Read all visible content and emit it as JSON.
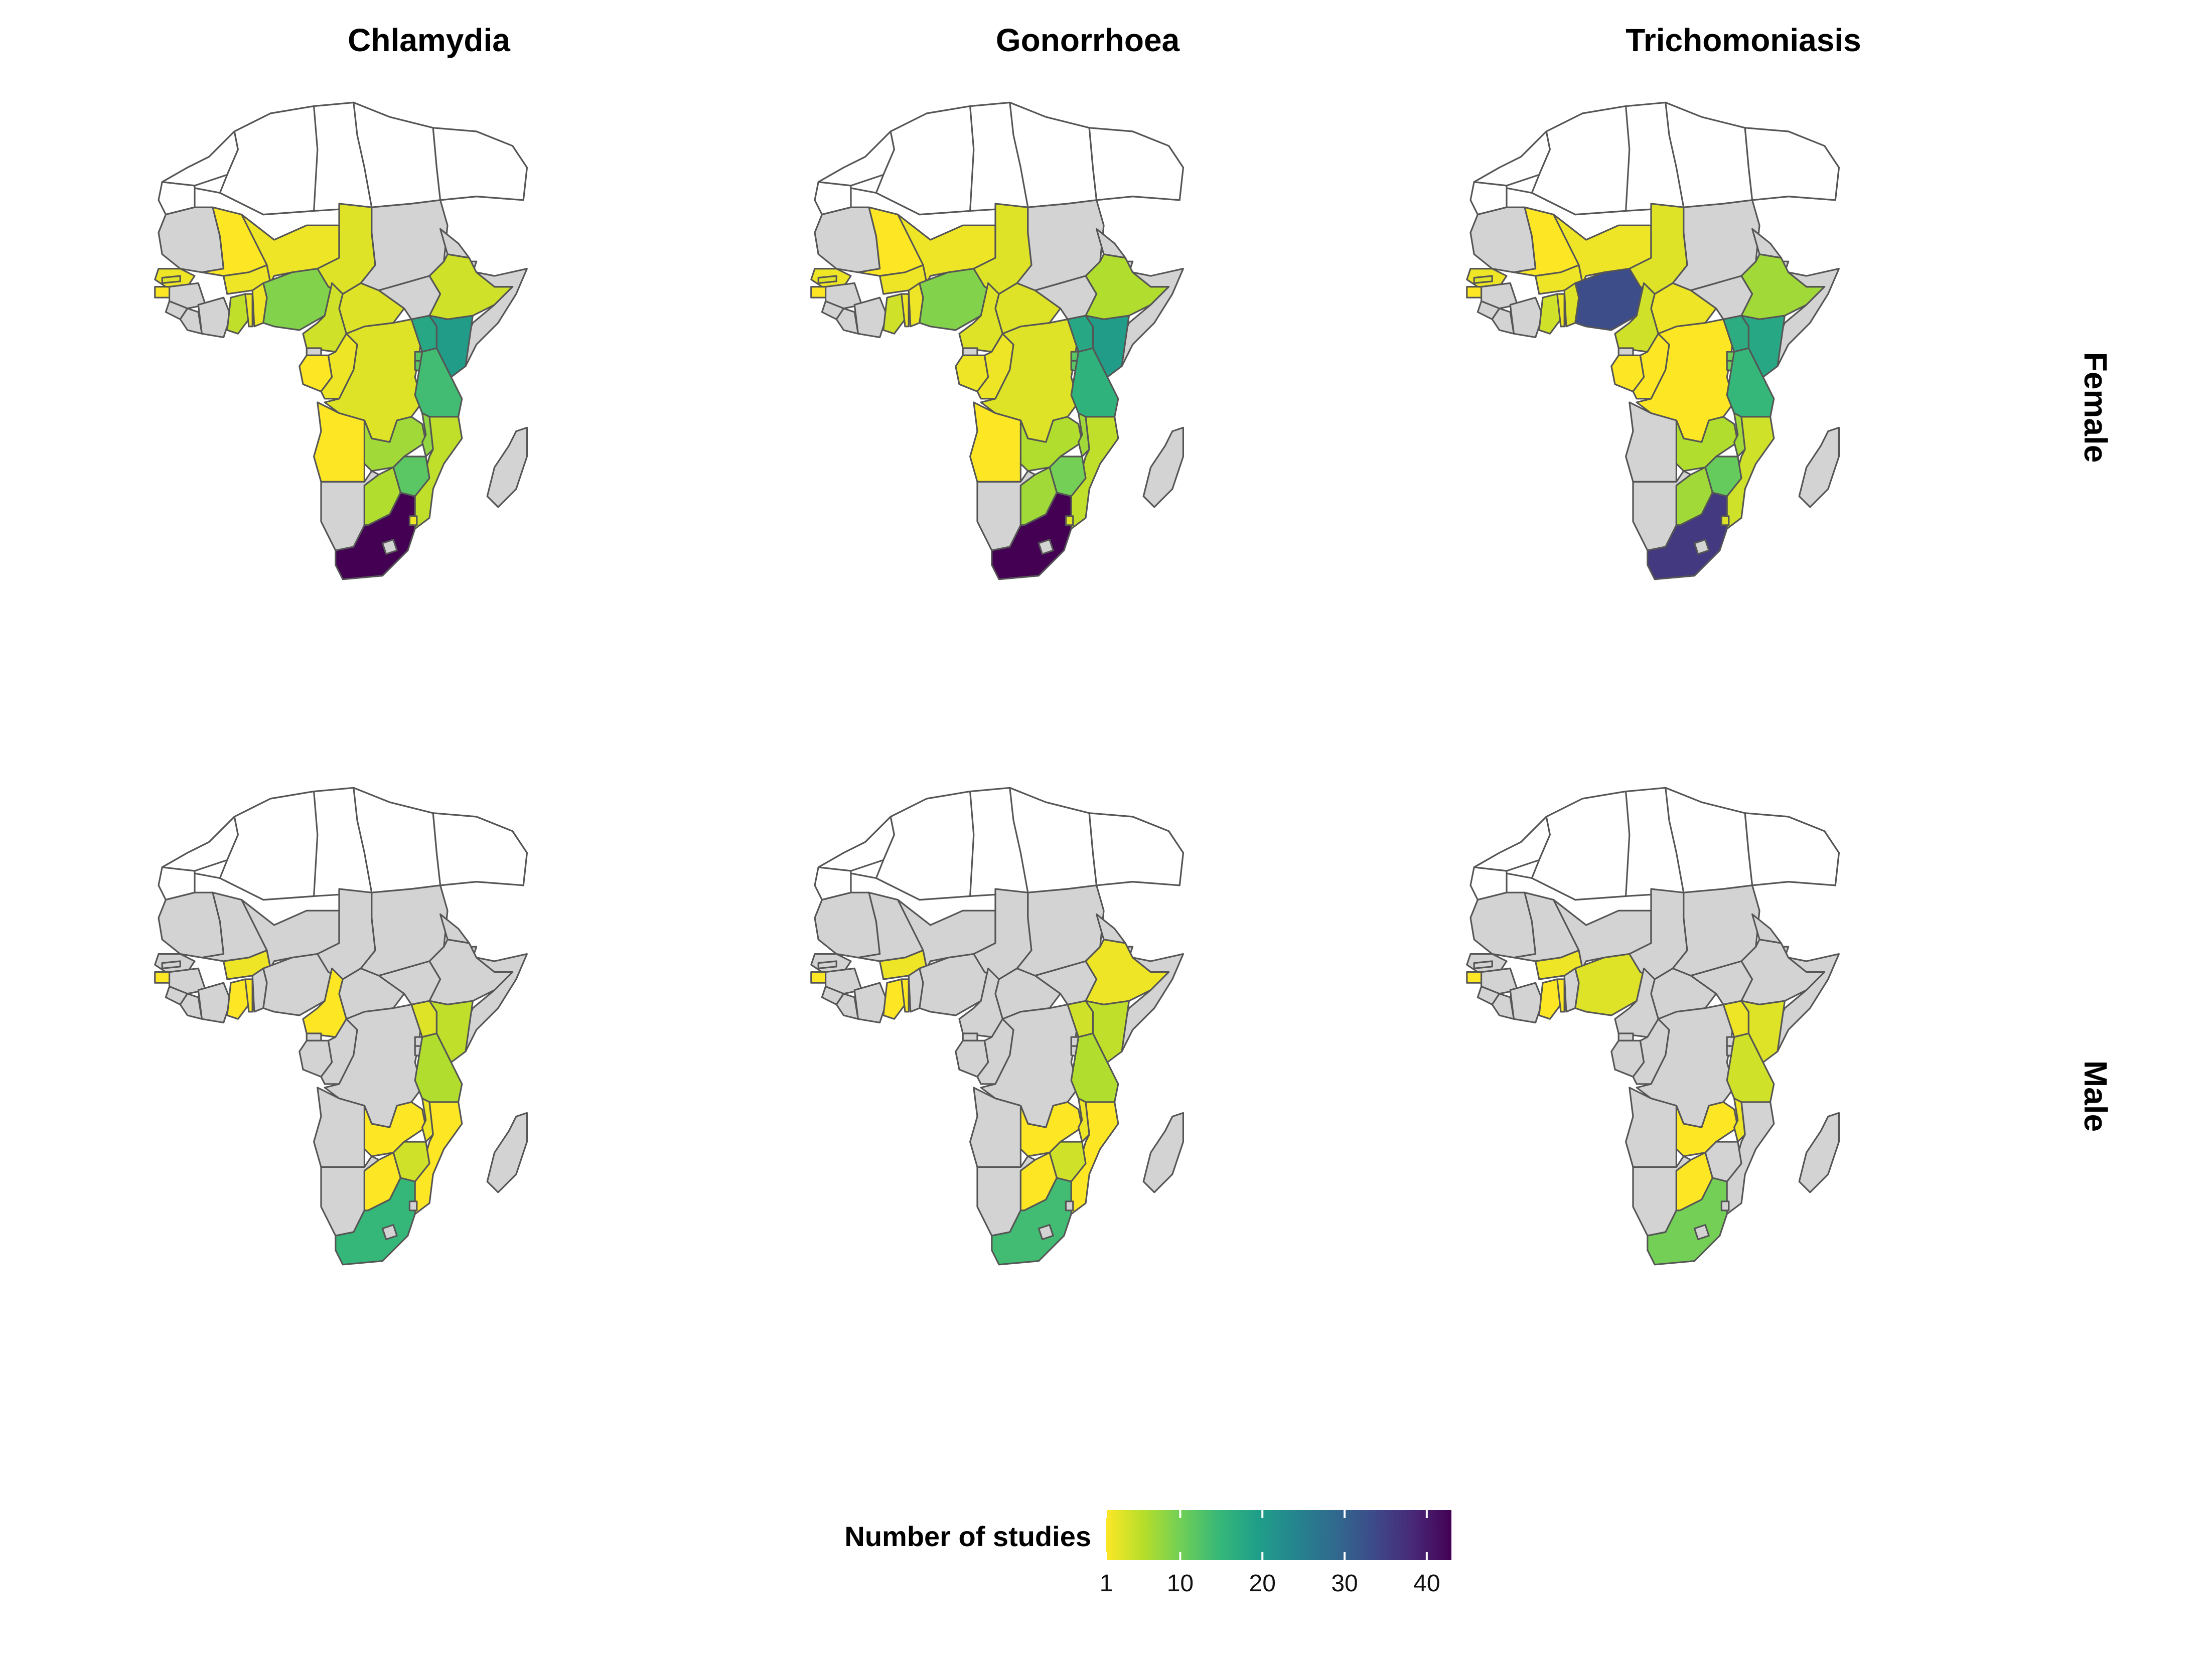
{
  "facets": {
    "columns": [
      "Chlamydia",
      "Gonorrhoea",
      "Trichomoniasis"
    ],
    "rows": [
      "Female",
      "Male"
    ]
  },
  "legend": {
    "title": "Number of studies",
    "ticks": [
      1,
      10,
      20,
      30,
      40
    ],
    "tick_labels": [
      "1",
      "10",
      "20",
      "30",
      "40"
    ],
    "range": [
      1,
      43
    ],
    "palette": "viridis (reversed)",
    "placement": "bottom-center"
  },
  "colors": {
    "no_data": "#d3d3d3",
    "not_in_study_region": "#ffffff",
    "border": "#555555",
    "scale": [
      "#fde725",
      "#b5de2b",
      "#6ece58",
      "#35b779",
      "#1f9e89",
      "#26828e",
      "#31688e",
      "#3e4989",
      "#482878",
      "#440154"
    ]
  },
  "chart_data": {
    "type": "choropleth",
    "value_label": "Number of studies (estimated from colour)",
    "panels": [
      {
        "pathogen": "Chlamydia",
        "sex": "Female",
        "values": {
          "Mali": 1,
          "Senegal": 2,
          "Gambia": 3,
          "Guinea-Bissau": 1,
          "Burkina Faso": 2,
          "Ghana": 5,
          "Togo": 2,
          "Benin": 2,
          "Nigeria": 9,
          "Niger": 2,
          "Chad": 3,
          "Cameroon": 4,
          "Gabon": 1,
          "Congo": 2,
          "DR Congo": 3,
          "Central African Republic": 3,
          "Angola": 1,
          "Ethiopia": 4,
          "Kenya": 20,
          "Uganda": 18,
          "Rwanda": 12,
          "Burundi": 12,
          "Tanzania": 14,
          "Zambia": 7,
          "Malawi": 8,
          "Mozambique": 5,
          "Zimbabwe": 12,
          "Botswana": 6,
          "South Africa": 43,
          "Eswatini": 2
        }
      },
      {
        "pathogen": "Gonorrhoea",
        "sex": "Female",
        "values": {
          "Mali": 1,
          "Senegal": 2,
          "Gambia": 3,
          "Guinea-Bissau": 1,
          "Burkina Faso": 2,
          "Ghana": 4,
          "Togo": 2,
          "Benin": 2,
          "Nigeria": 9,
          "Niger": 2,
          "Chad": 3,
          "Cameroon": 3,
          "Gabon": 2,
          "Congo": 2,
          "DR Congo": 3,
          "Central African Republic": 3,
          "Angola": 1,
          "Ethiopia": 6,
          "Kenya": 20,
          "Uganda": 18,
          "Rwanda": 12,
          "Burundi": 12,
          "Tanzania": 16,
          "Zambia": 6,
          "Malawi": 7,
          "Mozambique": 5,
          "Zimbabwe": 10,
          "Botswana": 7,
          "South Africa": 43,
          "Eswatini": 3
        }
      },
      {
        "pathogen": "Trichomoniasis",
        "sex": "Female",
        "values": {
          "Mali": 1,
          "Senegal": 2,
          "Gambia": 3,
          "Guinea-Bissau": 1,
          "Burkina Faso": 2,
          "Ghana": 4,
          "Togo": 2,
          "Benin": 3,
          "Nigeria": 33,
          "Niger": 2,
          "Chad": 3,
          "Cameroon": 4,
          "Gabon": 1,
          "Congo": 1,
          "DR Congo": 1,
          "Central African Republic": 2,
          "Ethiopia": 7,
          "Kenya": 18,
          "Uganda": 17,
          "Rwanda": 10,
          "Burundi": 10,
          "Tanzania": 15,
          "Zambia": 6,
          "Malawi": 7,
          "Mozambique": 4,
          "Zimbabwe": 11,
          "Botswana": 7,
          "South Africa": 36,
          "Eswatini": 3
        }
      },
      {
        "pathogen": "Chlamydia",
        "sex": "Male",
        "values": {
          "Guinea-Bissau": 1,
          "Burkina Faso": 2,
          "Ghana": 1,
          "Togo": 1,
          "Cameroon": 1,
          "Uganda": 3,
          "Kenya": 5,
          "Tanzania": 6,
          "Zambia": 1,
          "Malawi": 2,
          "Mozambique": 1,
          "Zimbabwe": 4,
          "Botswana": 1,
          "South Africa": 15
        }
      },
      {
        "pathogen": "Gonorrhoea",
        "sex": "Male",
        "values": {
          "Guinea-Bissau": 1,
          "Burkina Faso": 2,
          "Ghana": 1,
          "Togo": 1,
          "Ethiopia": 2,
          "Uganda": 4,
          "Kenya": 5,
          "Tanzania": 6,
          "Zambia": 1,
          "Malawi": 2,
          "Mozambique": 1,
          "Zimbabwe": 4,
          "Botswana": 1,
          "South Africa": 14
        }
      },
      {
        "pathogen": "Trichomoniasis",
        "sex": "Male",
        "values": {
          "Guinea-Bissau": 1,
          "Burkina Faso": 2,
          "Ghana": 1,
          "Togo": 1,
          "Nigeria": 3,
          "Uganda": 2,
          "Kenya": 3,
          "Tanzania": 4,
          "Zambia": 1,
          "Malawi": 2,
          "Botswana": 1,
          "South Africa": 10
        }
      }
    ]
  }
}
